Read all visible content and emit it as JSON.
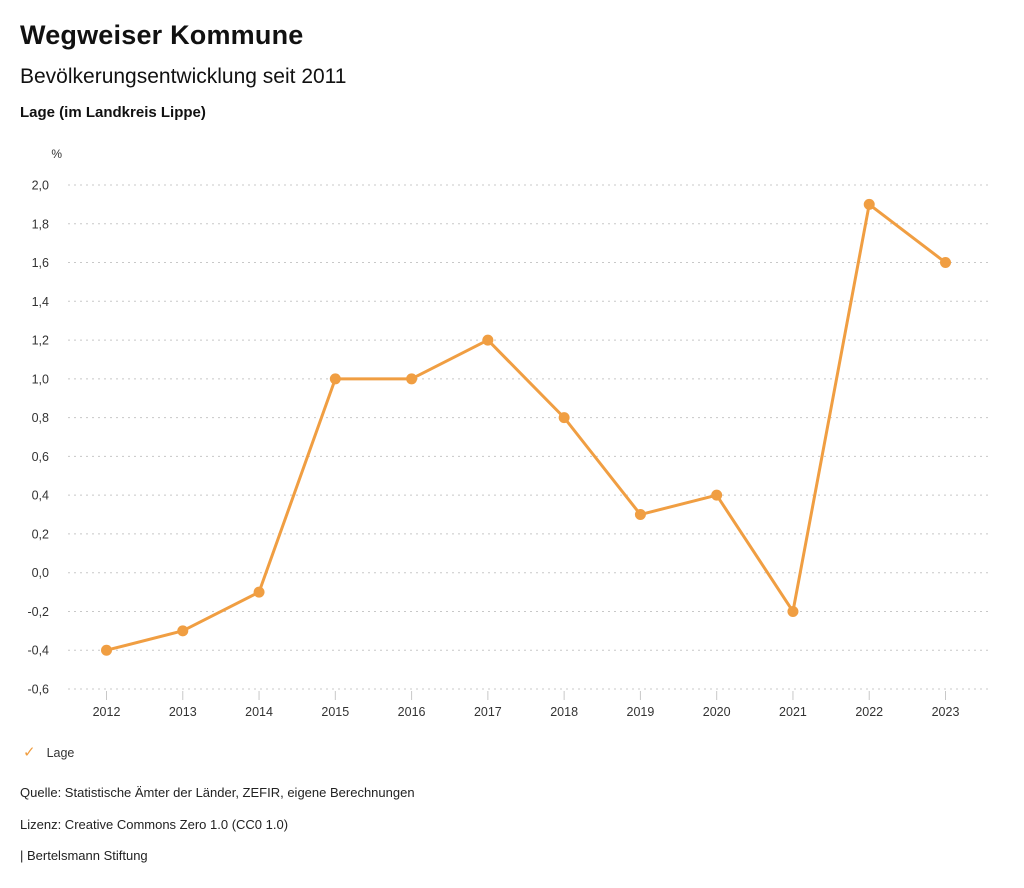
{
  "header": {
    "title": "Wegweiser Kommune",
    "subtitle": "Bevölkerungsentwicklung seit 2011",
    "region_label": "Lage (im Landkreis Lippe)"
  },
  "chart_data": {
    "type": "line",
    "title": "Bevölkerungsentwicklung seit 2011",
    "region": "Lage (im Landkreis Lippe)",
    "ylabel": "%",
    "xlabel": "",
    "x": [
      "2012",
      "2013",
      "2014",
      "2015",
      "2016",
      "2017",
      "2018",
      "2019",
      "2020",
      "2021",
      "2022",
      "2023"
    ],
    "series": [
      {
        "name": "Lage",
        "values": [
          -0.4,
          -0.3,
          -0.1,
          1.0,
          1.0,
          1.2,
          0.8,
          0.3,
          0.4,
          -0.2,
          1.9,
          1.6
        ],
        "color": "#F09E42"
      }
    ],
    "ylim": [
      -0.6,
      2.0
    ],
    "ytick_step": 0.2,
    "decimal_separator": ",",
    "grid": "dotted-horizontal",
    "gridline_color": "#c8c8c8",
    "legend_position": "bottom-left"
  },
  "legend": {
    "marker_glyph": "✓",
    "label": "Lage",
    "color": "#F09E42"
  },
  "footer": {
    "source": "Quelle: Statistische Ämter der Länder, ZEFIR, eigene Berechnungen",
    "license": "Lizenz: Creative Commons Zero 1.0 (CC0 1.0)",
    "attribution": "| Bertelsmann Stiftung"
  }
}
